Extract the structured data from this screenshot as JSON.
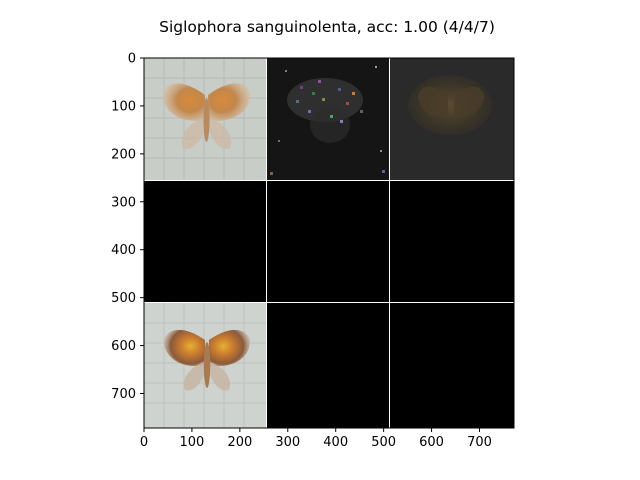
{
  "chart_data": {
    "type": "image-grid",
    "title": "Siglophora sanguinolenta, acc: 1.00 (4/4/7)",
    "grid": {
      "rows": 3,
      "cols": 3
    },
    "xlim": [
      0,
      772
    ],
    "ylim": [
      772,
      0
    ],
    "x_ticks": [
      0,
      100,
      200,
      300,
      400,
      500,
      600,
      700
    ],
    "y_ticks": [
      0,
      100,
      200,
      300,
      400,
      500,
      600,
      700
    ],
    "cells": [
      {
        "row": 0,
        "col": 0,
        "content": "moth-photo-faded"
      },
      {
        "row": 0,
        "col": 1,
        "content": "noisy-attribution-map"
      },
      {
        "row": 0,
        "col": 2,
        "content": "dim-attribution-map"
      },
      {
        "row": 1,
        "col": 0,
        "content": "black"
      },
      {
        "row": 1,
        "col": 1,
        "content": "black"
      },
      {
        "row": 1,
        "col": 2,
        "content": "black"
      },
      {
        "row": 2,
        "col": 0,
        "content": "moth-photo"
      },
      {
        "row": 2,
        "col": 1,
        "content": "black"
      },
      {
        "row": 2,
        "col": 2,
        "content": "black"
      }
    ]
  }
}
